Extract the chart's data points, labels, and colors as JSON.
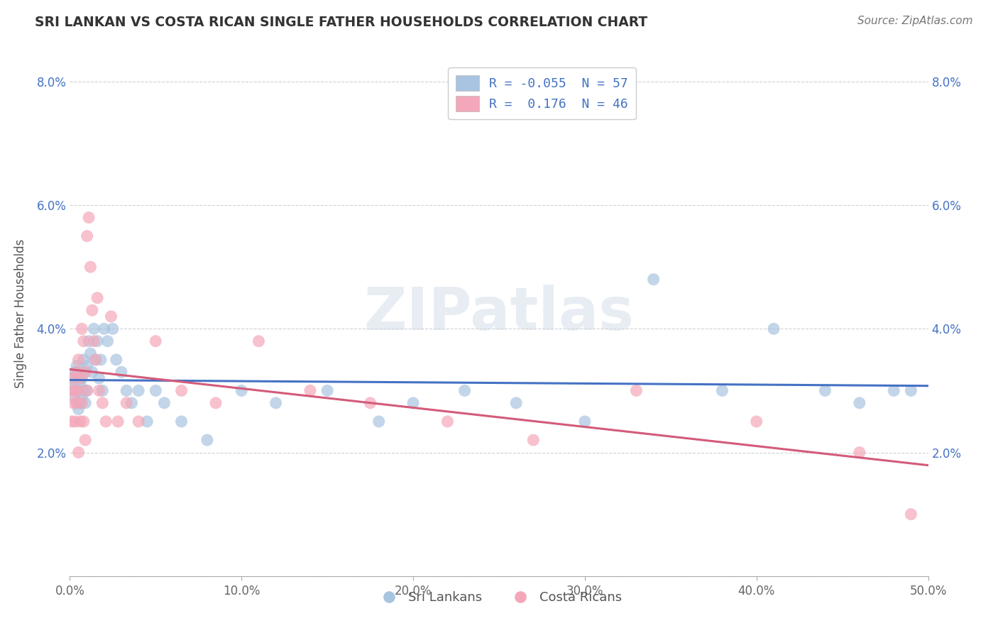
{
  "title": "SRI LANKAN VS COSTA RICAN SINGLE FATHER HOUSEHOLDS CORRELATION CHART",
  "source": "Source: ZipAtlas.com",
  "xlabel": "",
  "ylabel": "Single Father Households",
  "xlim": [
    0.0,
    0.5
  ],
  "ylim": [
    0.0,
    0.085
  ],
  "xticks": [
    0.0,
    0.1,
    0.2,
    0.3,
    0.4,
    0.5
  ],
  "xtick_labels": [
    "0.0%",
    "10.0%",
    "20.0%",
    "30.0%",
    "40.0%",
    "50.0%"
  ],
  "yticks": [
    0.0,
    0.02,
    0.04,
    0.06,
    0.08
  ],
  "ytick_labels": [
    "",
    "2.0%",
    "4.0%",
    "6.0%",
    "8.0%"
  ],
  "sri_lankan_color": "#a8c4e0",
  "costa_rican_color": "#f4a7b9",
  "sri_lankan_line_color": "#4472c4",
  "costa_rican_line_color": "#d45b7a",
  "background_color": "#ffffff",
  "watermark_text": "ZIPatlas",
  "legend_r_sri": "-0.055",
  "legend_n_sri": "57",
  "legend_r_costa": " 0.176",
  "legend_n_costa": "46",
  "sri_lankan_x": [
    0.001,
    0.002,
    0.002,
    0.003,
    0.003,
    0.004,
    0.004,
    0.005,
    0.005,
    0.005,
    0.006,
    0.006,
    0.007,
    0.007,
    0.008,
    0.008,
    0.009,
    0.009,
    0.01,
    0.01,
    0.011,
    0.012,
    0.013,
    0.014,
    0.015,
    0.016,
    0.017,
    0.018,
    0.019,
    0.02,
    0.022,
    0.025,
    0.027,
    0.03,
    0.033,
    0.036,
    0.04,
    0.045,
    0.05,
    0.055,
    0.065,
    0.08,
    0.1,
    0.12,
    0.15,
    0.18,
    0.2,
    0.23,
    0.26,
    0.3,
    0.34,
    0.38,
    0.41,
    0.44,
    0.46,
    0.48,
    0.49
  ],
  "sri_lankan_y": [
    0.032,
    0.031,
    0.029,
    0.033,
    0.03,
    0.034,
    0.028,
    0.03,
    0.033,
    0.027,
    0.031,
    0.028,
    0.032,
    0.029,
    0.035,
    0.03,
    0.033,
    0.028,
    0.034,
    0.03,
    0.038,
    0.036,
    0.033,
    0.04,
    0.035,
    0.038,
    0.032,
    0.035,
    0.03,
    0.04,
    0.038,
    0.04,
    0.035,
    0.033,
    0.03,
    0.028,
    0.03,
    0.025,
    0.03,
    0.028,
    0.025,
    0.022,
    0.03,
    0.028,
    0.03,
    0.025,
    0.028,
    0.03,
    0.028,
    0.025,
    0.048,
    0.03,
    0.04,
    0.03,
    0.028,
    0.03,
    0.03
  ],
  "costa_rican_x": [
    0.001,
    0.001,
    0.002,
    0.002,
    0.003,
    0.003,
    0.004,
    0.004,
    0.005,
    0.005,
    0.005,
    0.006,
    0.006,
    0.007,
    0.007,
    0.008,
    0.008,
    0.009,
    0.009,
    0.01,
    0.01,
    0.011,
    0.012,
    0.013,
    0.014,
    0.015,
    0.016,
    0.017,
    0.019,
    0.021,
    0.024,
    0.028,
    0.033,
    0.04,
    0.05,
    0.065,
    0.085,
    0.11,
    0.14,
    0.175,
    0.22,
    0.27,
    0.33,
    0.4,
    0.46,
    0.49
  ],
  "costa_rican_y": [
    0.03,
    0.025,
    0.032,
    0.028,
    0.03,
    0.025,
    0.033,
    0.028,
    0.035,
    0.03,
    0.02,
    0.032,
    0.025,
    0.04,
    0.028,
    0.038,
    0.025,
    0.033,
    0.022,
    0.03,
    0.055,
    0.058,
    0.05,
    0.043,
    0.038,
    0.035,
    0.045,
    0.03,
    0.028,
    0.025,
    0.042,
    0.025,
    0.028,
    0.025,
    0.038,
    0.03,
    0.028,
    0.038,
    0.03,
    0.028,
    0.025,
    0.022,
    0.03,
    0.025,
    0.02,
    0.01
  ]
}
